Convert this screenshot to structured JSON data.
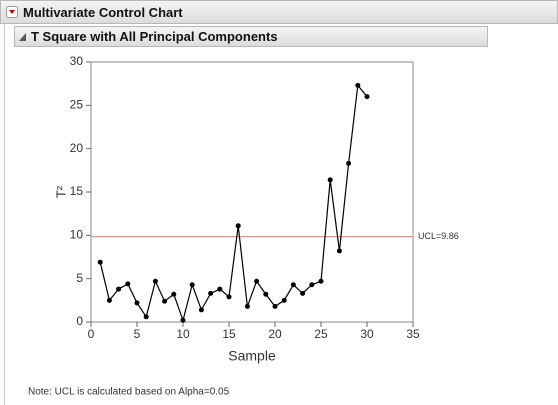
{
  "window": {
    "title": "Multivariate Control Chart",
    "section": "T Square with All Principal Components"
  },
  "chart_data": {
    "type": "line",
    "xlabel": "Sample",
    "ylabel": "T²",
    "x": [
      1,
      2,
      3,
      4,
      5,
      6,
      7,
      8,
      9,
      10,
      11,
      12,
      13,
      14,
      15,
      16,
      17,
      18,
      19,
      20,
      21,
      22,
      23,
      24,
      25,
      26,
      27,
      28,
      29,
      30
    ],
    "series": [
      {
        "color": "#000000",
        "values": [
          6.9,
          2.5,
          3.8,
          4.4,
          2.2,
          0.6,
          4.7,
          2.4,
          3.2,
          0.2,
          4.3,
          1.4,
          3.3,
          3.8,
          2.9,
          11.1,
          1.8,
          4.7,
          3.2,
          1.8,
          2.5,
          4.3,
          3.3,
          4.3,
          4.7,
          16.4,
          8.2,
          18.3,
          27.3,
          26.0
        ]
      }
    ],
    "ucl": {
      "value": 9.86,
      "label": "UCL=9.86",
      "color": "#d9908a"
    },
    "xlim": [
      0,
      35
    ],
    "xticks": [
      0,
      5,
      10,
      15,
      20,
      25,
      30,
      35
    ],
    "ylim": [
      0,
      30
    ],
    "yticks": [
      0,
      5,
      10,
      15,
      20,
      25,
      30
    ],
    "grid": false,
    "note": "Note: UCL is calculated based on Alpha=0.05"
  }
}
